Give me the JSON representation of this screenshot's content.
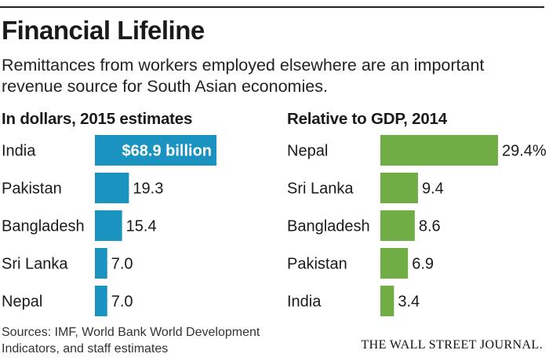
{
  "title": "Financial Lifeline",
  "subtitle": "Remittances from workers employed elsewhere are an important revenue source for South Asian economies.",
  "source_note": "Sources: IMF, World Bank World Development Indicators, and staff estimates",
  "logo_text": "THE WALL STREET JOURNAL.",
  "colors": {
    "left_bars": "#1a93c0",
    "right_bars": "#71ad45"
  },
  "chart_data": [
    {
      "type": "bar",
      "orientation": "horizontal",
      "title": "In dollars, 2015 estimates",
      "unit": "billion dollars",
      "categories": [
        "India",
        "Pakistan",
        "Bangladesh",
        "Sri Lanka",
        "Nepal"
      ],
      "values": [
        68.9,
        19.3,
        15.4,
        7.0,
        7.0
      ],
      "value_labels": [
        "$68.9 billion",
        "19.3",
        "15.4",
        "7.0",
        "7.0"
      ]
    },
    {
      "type": "bar",
      "orientation": "horizontal",
      "title": "Relative to GDP, 2014",
      "unit": "percent of GDP",
      "categories": [
        "Nepal",
        "Sri Lanka",
        "Bangladesh",
        "Pakistan",
        "India"
      ],
      "values": [
        29.4,
        9.4,
        8.6,
        6.9,
        3.4
      ],
      "value_labels": [
        "29.4%",
        "9.4",
        "8.6",
        "6.9",
        "3.4"
      ]
    }
  ]
}
